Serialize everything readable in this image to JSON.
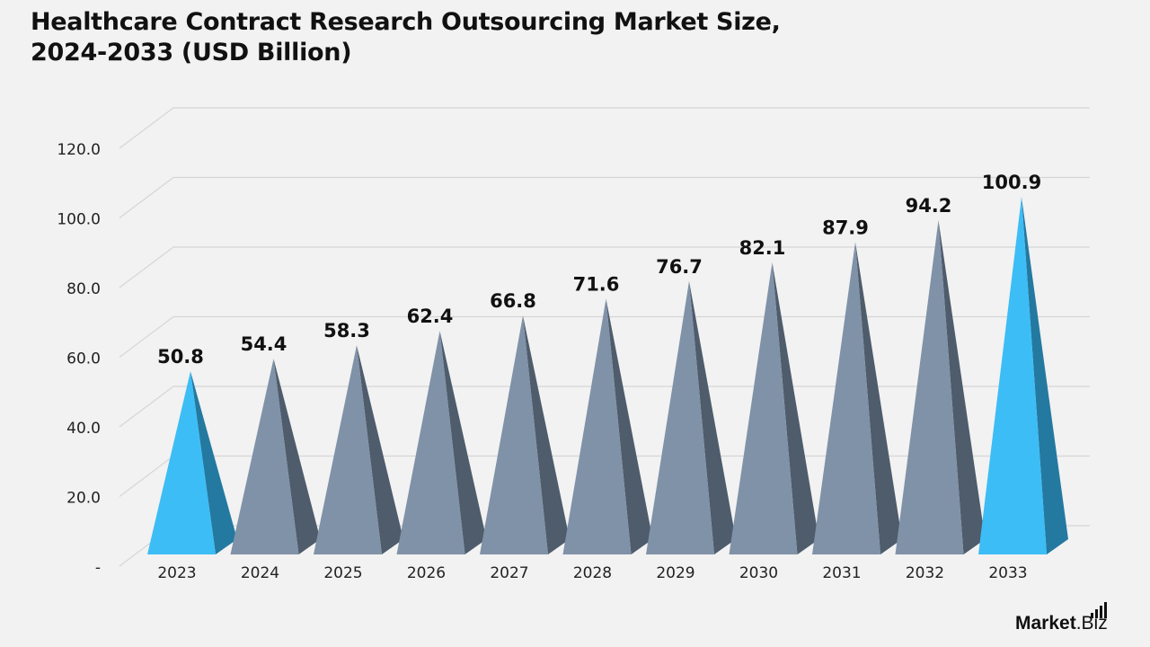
{
  "chart_data": {
    "type": "bar",
    "title_lines": [
      "Healthcare Contract Research Outsourcing Market Size,",
      "2024-2033 (USD Billion)"
    ],
    "xlabel": "",
    "ylabel": "",
    "categories": [
      "2023",
      "2024",
      "2025",
      "2026",
      "2027",
      "2028",
      "2029",
      "2030",
      "2031",
      "2032",
      "2033"
    ],
    "values": [
      50.8,
      54.4,
      58.3,
      62.4,
      66.8,
      71.6,
      76.7,
      82.1,
      87.9,
      94.2,
      100.9
    ],
    "data_labels": [
      "50.8",
      "54.4",
      "58.3",
      "62.4",
      "66.8",
      "71.6",
      "76.7",
      "82.1",
      "87.9",
      "94.2",
      "100.9"
    ],
    "y_ticks": [
      "-",
      "20.0",
      "40.0",
      "60.0",
      "80.0",
      "100.0",
      "120.0"
    ],
    "ylim": [
      0,
      120
    ],
    "grid": true,
    "legend": "none",
    "highlighted_categories": [
      "2023",
      "2033"
    ],
    "colors": {
      "background": "#f2f2f2",
      "highlight_front": "#3dbdf5",
      "highlight_side": "#2479a0",
      "default_front": "#8092a8",
      "default_side": "#4e5c6c",
      "gridline": "#d6d6d6",
      "text": "#111111"
    }
  },
  "branding": {
    "logo_text": "Market.Biz",
    "logo_main": "Market",
    "logo_suffix": ".Biz"
  }
}
